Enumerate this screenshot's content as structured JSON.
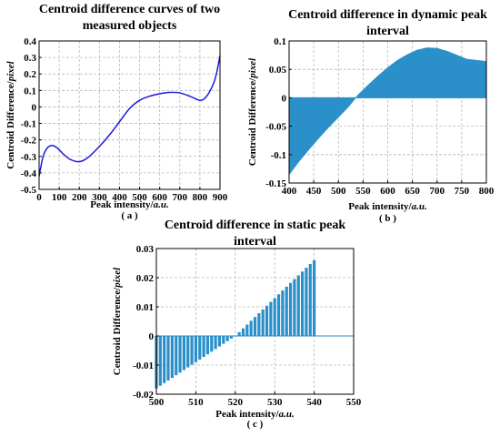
{
  "chart_data": [
    {
      "type": "line",
      "title": [
        "Centroid difference curves of two",
        "measured objects"
      ],
      "xlabel_main": "Peak intensity/",
      "xlabel_unit": "a.u.",
      "ylabel_main": "Centroid Difference/",
      "ylabel_unit": "pixel",
      "caption": "( a )",
      "xlim": [
        0,
        900
      ],
      "ylim": [
        -0.5,
        0.4
      ],
      "xticks": [
        0,
        100,
        200,
        300,
        400,
        500,
        600,
        700,
        800,
        900
      ],
      "yticks": [
        -0.5,
        -0.4,
        -0.3,
        -0.2,
        -0.1,
        0,
        0.1,
        0.2,
        0.3,
        0.4
      ],
      "grid": true,
      "color": "#1a1adb",
      "x": [
        0,
        20,
        40,
        60,
        80,
        100,
        120,
        150,
        180,
        200,
        220,
        250,
        300,
        350,
        400,
        450,
        500,
        550,
        600,
        650,
        700,
        750,
        800,
        830,
        860,
        880,
        900
      ],
      "y": [
        -0.42,
        -0.3,
        -0.25,
        -0.235,
        -0.24,
        -0.26,
        -0.285,
        -0.315,
        -0.33,
        -0.332,
        -0.325,
        -0.3,
        -0.24,
        -0.17,
        -0.09,
        -0.01,
        0.04,
        0.065,
        0.08,
        0.088,
        0.085,
        0.065,
        0.04,
        0.06,
        0.12,
        0.19,
        0.31
      ]
    },
    {
      "type": "area",
      "title": [
        "Centroid difference in dynamic peak",
        "interval"
      ],
      "xlabel_main": "Peak intensity/",
      "xlabel_unit": "a.u.",
      "ylabel_main": "Centroid Difference/",
      "ylabel_unit": "pixel",
      "caption": "( b )",
      "xlim": [
        400,
        800
      ],
      "ylim": [
        -0.15,
        0.1
      ],
      "xticks": [
        400,
        450,
        500,
        550,
        600,
        650,
        700,
        750,
        800
      ],
      "yticks": [
        -0.15,
        -0.1,
        -0.05,
        0,
        0.05,
        0.1
      ],
      "grid": true,
      "color": "#2b8fc9",
      "x": [
        400,
        420,
        440,
        460,
        480,
        500,
        520,
        540,
        560,
        580,
        600,
        620,
        640,
        660,
        680,
        700,
        720,
        740,
        760,
        780,
        800
      ],
      "y": [
        -0.135,
        -0.112,
        -0.091,
        -0.071,
        -0.052,
        -0.034,
        -0.016,
        0.005,
        0.022,
        0.038,
        0.053,
        0.066,
        0.076,
        0.084,
        0.088,
        0.087,
        0.082,
        0.075,
        0.068,
        0.066,
        0.064
      ]
    },
    {
      "type": "bar",
      "title": [
        "Centroid difference in static peak",
        "interval"
      ],
      "xlabel_main": "Peak intensity/",
      "xlabel_unit": "a.u.",
      "ylabel_main": "Centroid Difference/",
      "ylabel_unit": "pixel",
      "caption": "( c )",
      "xlim": [
        500,
        550
      ],
      "ylim": [
        -0.02,
        0.03
      ],
      "xticks": [
        500,
        510,
        520,
        530,
        540,
        550
      ],
      "yticks": [
        -0.02,
        -0.01,
        0,
        0.01,
        0.02,
        0.03
      ],
      "grid": true,
      "color": "#2b8fc9",
      "x_start": 500,
      "x_step": 1,
      "values": [
        -0.018,
        -0.0171,
        -0.0162,
        -0.0153,
        -0.0144,
        -0.0135,
        -0.0126,
        -0.0117,
        -0.0108,
        -0.0099,
        -0.009,
        -0.0081,
        -0.0072,
        -0.0063,
        -0.0054,
        -0.0045,
        -0.0036,
        -0.0027,
        -0.0018,
        -0.0009,
        0.0,
        0.0013,
        0.0026,
        0.0039,
        0.0052,
        0.0065,
        0.0078,
        0.0091,
        0.0104,
        0.0117,
        0.013,
        0.0143,
        0.0156,
        0.0169,
        0.0182,
        0.0195,
        0.0208,
        0.0221,
        0.0234,
        0.0247,
        0.026
      ]
    }
  ]
}
